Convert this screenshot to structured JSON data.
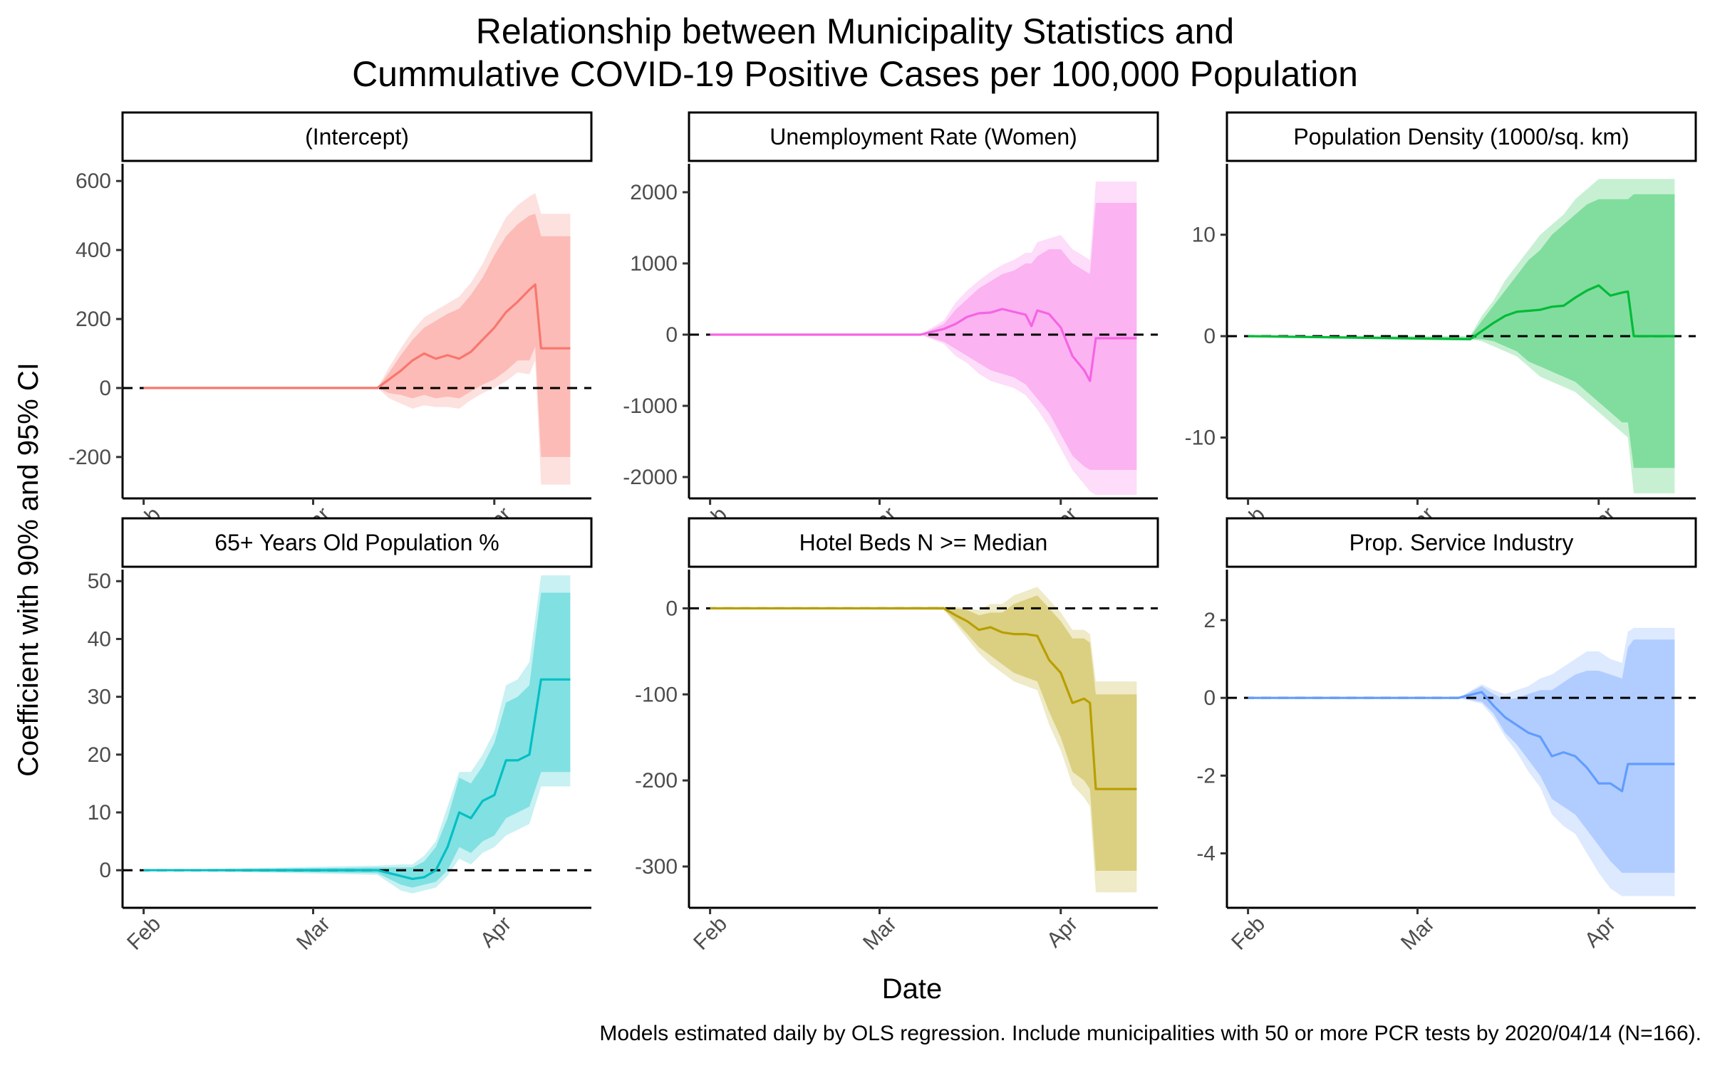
{
  "title": {
    "line1": "Relationship between Municipality Statistics and",
    "line2": "Cummulative COVID-19 Positive Cases per 100,000 Population"
  },
  "caption": "Models estimated daily by OLS regression. Include municipalities with 50 or more PCR tests by 2020/04/14 (N=166).",
  "chart_data": {
    "type": "line",
    "xlabel": "Date",
    "ylabel": "Coefficient with 90% and 95% CI",
    "x_range": [
      "2020-02-01",
      "2020-04-14"
    ],
    "x_ticks": [
      {
        "label": "Feb",
        "date": "2020-02-01"
      },
      {
        "label": "Mar",
        "date": "2020-03-01"
      },
      {
        "label": "Apr",
        "date": "2020-04-01"
      }
    ],
    "panels": [
      {
        "title": "(Intercept)",
        "color": "#F8766D",
        "ylim": [
          -320,
          650
        ],
        "y_ticks": [
          -200,
          0,
          200,
          400,
          600
        ],
        "dates": [
          "2020-02-01",
          "2020-03-12",
          "2020-03-14",
          "2020-03-16",
          "2020-03-18",
          "2020-03-20",
          "2020-03-22",
          "2020-03-24",
          "2020-03-26",
          "2020-03-28",
          "2020-03-30",
          "2020-04-01",
          "2020-04-03",
          "2020-04-05",
          "2020-04-07",
          "2020-04-08",
          "2020-04-09",
          "2020-04-14"
        ],
        "estimate": [
          0,
          0,
          25,
          50,
          80,
          100,
          85,
          95,
          85,
          105,
          140,
          175,
          220,
          250,
          285,
          300,
          115,
          115
        ],
        "ci90_low": [
          0,
          0,
          -15,
          -20,
          -30,
          -20,
          -30,
          -25,
          -30,
          -10,
          10,
          25,
          50,
          80,
          80,
          120,
          -200,
          -200
        ],
        "ci90_high": [
          0,
          0,
          45,
          95,
          140,
          175,
          195,
          215,
          230,
          270,
          320,
          385,
          440,
          475,
          500,
          505,
          440,
          440
        ],
        "ci95_low": [
          0,
          0,
          -30,
          -45,
          -60,
          -50,
          -55,
          -55,
          -60,
          -35,
          -15,
          0,
          20,
          45,
          40,
          80,
          -280,
          -280
        ],
        "ci95_high": [
          0,
          0,
          60,
          115,
          165,
          205,
          225,
          245,
          265,
          305,
          360,
          430,
          495,
          530,
          555,
          565,
          505,
          505
        ]
      },
      {
        "title": "Unemployment Rate (Women)",
        "color": "#F564E3",
        "ylim": [
          -2300,
          2400
        ],
        "y_ticks": [
          -2000,
          -1000,
          0,
          1000,
          2000
        ],
        "dates": [
          "2020-02-01",
          "2020-03-08",
          "2020-03-12",
          "2020-03-14",
          "2020-03-16",
          "2020-03-18",
          "2020-03-20",
          "2020-03-22",
          "2020-03-24",
          "2020-03-26",
          "2020-03-27",
          "2020-03-28",
          "2020-03-30",
          "2020-04-01",
          "2020-04-03",
          "2020-04-05",
          "2020-04-06",
          "2020-04-07",
          "2020-04-14"
        ],
        "estimate": [
          0,
          0,
          80,
          150,
          250,
          300,
          310,
          360,
          320,
          280,
          120,
          340,
          290,
          100,
          -300,
          -500,
          -650,
          -50,
          -50
        ],
        "ci90_low": [
          0,
          0,
          -100,
          -200,
          -300,
          -400,
          -500,
          -550,
          -600,
          -700,
          -800,
          -900,
          -1100,
          -1400,
          -1700,
          -1850,
          -1900,
          -1900,
          -1900
        ],
        "ci90_high": [
          0,
          0,
          150,
          350,
          500,
          650,
          750,
          850,
          900,
          1000,
          1000,
          1100,
          1200,
          1200,
          1000,
          900,
          850,
          1850,
          1850
        ],
        "ci95_low": [
          0,
          0,
          -130,
          -300,
          -400,
          -550,
          -650,
          -700,
          -750,
          -850,
          -950,
          -1050,
          -1300,
          -1600,
          -1900,
          -2100,
          -2200,
          -2250,
          -2250
        ],
        "ci95_high": [
          0,
          0,
          200,
          450,
          620,
          760,
          880,
          980,
          1050,
          1150,
          1150,
          1300,
          1350,
          1400,
          1200,
          1100,
          1050,
          2150,
          2150
        ]
      },
      {
        "title": "Population Density (1000/sq. km)",
        "color": "#00BA38",
        "ylim": [
          -16,
          17
        ],
        "y_ticks": [
          -10,
          0,
          10
        ],
        "dates": [
          "2020-02-01",
          "2020-03-10",
          "2020-03-12",
          "2020-03-14",
          "2020-03-16",
          "2020-03-18",
          "2020-03-20",
          "2020-03-22",
          "2020-03-24",
          "2020-03-26",
          "2020-03-28",
          "2020-03-30",
          "2020-04-01",
          "2020-04-03",
          "2020-04-05",
          "2020-04-06",
          "2020-04-07",
          "2020-04-14"
        ],
        "estimate": [
          0,
          -0.3,
          0.5,
          1.3,
          2.0,
          2.4,
          2.5,
          2.6,
          2.9,
          3.0,
          3.8,
          4.5,
          5.0,
          4.0,
          4.3,
          4.4,
          0,
          0
        ],
        "ci90_low": [
          0,
          -0.3,
          -0.3,
          -0.5,
          -1.0,
          -1.5,
          -2.5,
          -3.0,
          -3.5,
          -4.0,
          -4.5,
          -5.5,
          -6.5,
          -7.5,
          -8.5,
          -8.5,
          -13,
          -13
        ],
        "ci90_high": [
          0,
          -0.1,
          1.5,
          3.0,
          4.5,
          6.0,
          7.5,
          8.5,
          10.0,
          11.0,
          12.0,
          13.0,
          13.5,
          13.5,
          13.5,
          13.5,
          14.0,
          14.0
        ],
        "ci95_low": [
          0,
          -0.3,
          -0.5,
          -1.0,
          -1.5,
          -2.0,
          -3.0,
          -4.0,
          -4.5,
          -5.0,
          -5.5,
          -6.5,
          -7.5,
          -8.5,
          -9.5,
          -10,
          -15.5,
          -15.5
        ],
        "ci95_high": [
          0,
          0,
          2.0,
          3.5,
          5.5,
          7.0,
          8.5,
          10.0,
          11.0,
          12.0,
          13.5,
          14.5,
          15.5,
          15.5,
          15.5,
          15.5,
          15.5,
          15.5
        ]
      },
      {
        "title": "65+ Years Old Population %",
        "color": "#00BFC4",
        "ylim": [
          -6.5,
          52
        ],
        "y_ticks": [
          0,
          10,
          20,
          30,
          40,
          50
        ],
        "dates": [
          "2020-02-01",
          "2020-03-12",
          "2020-03-16",
          "2020-03-18",
          "2020-03-20",
          "2020-03-22",
          "2020-03-24",
          "2020-03-26",
          "2020-03-28",
          "2020-03-30",
          "2020-04-01",
          "2020-04-03",
          "2020-04-05",
          "2020-04-07",
          "2020-04-09",
          "2020-04-14"
        ],
        "estimate": [
          0,
          0,
          -1.0,
          -1.5,
          -1.2,
          0,
          4,
          10,
          9,
          12,
          13,
          19,
          19,
          20,
          33,
          33
        ],
        "ci90_low": [
          0,
          -0.5,
          -2.5,
          -3.0,
          -2.5,
          -2.0,
          0,
          4,
          3,
          5,
          6,
          9,
          10,
          11,
          17,
          17
        ],
        "ci90_high": [
          0,
          0.5,
          0.5,
          0.5,
          1.5,
          4,
          9,
          16,
          15,
          18,
          22,
          29,
          30,
          32,
          48,
          48
        ],
        "ci95_low": [
          0,
          -0.8,
          -3.5,
          -4.0,
          -3.5,
          -3.0,
          -1,
          2,
          1,
          3,
          4,
          6,
          7,
          8,
          14.5,
          14.5
        ],
        "ci95_high": [
          0,
          0.8,
          1.0,
          1.0,
          2.5,
          5,
          11,
          17,
          17,
          20,
          24,
          32,
          33,
          36,
          51,
          51
        ]
      },
      {
        "title": "Hotel Beds N >= Median",
        "color": "#B79F00",
        "ylim": [
          -348,
          45
        ],
        "y_ticks": [
          -300,
          -200,
          -100,
          0
        ],
        "dates": [
          "2020-02-01",
          "2020-03-12",
          "2020-03-14",
          "2020-03-16",
          "2020-03-18",
          "2020-03-20",
          "2020-03-22",
          "2020-03-24",
          "2020-03-26",
          "2020-03-28",
          "2020-03-30",
          "2020-04-01",
          "2020-04-03",
          "2020-04-05",
          "2020-04-06",
          "2020-04-07",
          "2020-04-14"
        ],
        "estimate": [
          0,
          0,
          -8,
          -15,
          -25,
          -22,
          -28,
          -30,
          -30,
          -32,
          -60,
          -75,
          -110,
          -105,
          -110,
          -210,
          -210
        ],
        "ci90_low": [
          0,
          -1,
          -15,
          -30,
          -45,
          -55,
          -65,
          -75,
          -80,
          -85,
          -120,
          -150,
          -190,
          -200,
          -210,
          -305,
          -305
        ],
        "ci90_high": [
          0,
          1,
          0,
          -2,
          -8,
          -5,
          -5,
          5,
          10,
          15,
          0,
          -15,
          -35,
          -35,
          -40,
          -100,
          -100
        ],
        "ci95_low": [
          0,
          -2,
          -18,
          -35,
          -52,
          -65,
          -75,
          -85,
          -90,
          -95,
          -135,
          -165,
          -205,
          -220,
          -230,
          -330,
          -330
        ],
        "ci95_high": [
          0,
          2,
          2,
          0,
          -2,
          5,
          5,
          15,
          20,
          25,
          10,
          -5,
          -25,
          -25,
          -30,
          -85,
          -85
        ]
      },
      {
        "title": "Prop. Service Industry",
        "color": "#619CFF",
        "ylim": [
          -5.4,
          3.3
        ],
        "y_ticks": [
          -4,
          -2,
          0,
          2
        ],
        "dates": [
          "2020-02-01",
          "2020-03-08",
          "2020-03-12",
          "2020-03-14",
          "2020-03-16",
          "2020-03-18",
          "2020-03-20",
          "2020-03-22",
          "2020-03-24",
          "2020-03-26",
          "2020-03-28",
          "2020-03-30",
          "2020-04-01",
          "2020-04-03",
          "2020-04-05",
          "2020-04-06",
          "2020-04-07",
          "2020-04-14"
        ],
        "estimate": [
          0,
          0,
          0.15,
          -0.2,
          -0.5,
          -0.7,
          -0.9,
          -1.0,
          -1.5,
          -1.4,
          -1.5,
          -1.8,
          -2.2,
          -2.2,
          -2.4,
          -1.7,
          -1.7,
          -1.7
        ],
        "ci90_low": [
          0,
          0,
          -0.1,
          -0.4,
          -0.9,
          -1.2,
          -1.6,
          -2.0,
          -2.6,
          -2.8,
          -3.0,
          -3.4,
          -3.8,
          -4.2,
          -4.5,
          -4.5,
          -4.5,
          -4.5
        ],
        "ci90_high": [
          0,
          0,
          0.3,
          0.1,
          -0.05,
          0,
          0.1,
          0.2,
          0.2,
          0.4,
          0.6,
          0.7,
          0.7,
          0.6,
          0.5,
          1.3,
          1.5,
          1.5
        ],
        "ci95_low": [
          0,
          0,
          -0.15,
          -0.5,
          -1.0,
          -1.4,
          -1.9,
          -2.3,
          -3.0,
          -3.3,
          -3.5,
          -4.0,
          -4.5,
          -4.9,
          -5.1,
          -5.1,
          -5.1,
          -5.1
        ],
        "ci95_high": [
          0,
          0,
          0.35,
          0.2,
          0.1,
          0.2,
          0.3,
          0.5,
          0.6,
          0.8,
          1.0,
          1.2,
          1.2,
          1.0,
          0.9,
          1.7,
          1.8,
          1.8
        ]
      }
    ]
  }
}
